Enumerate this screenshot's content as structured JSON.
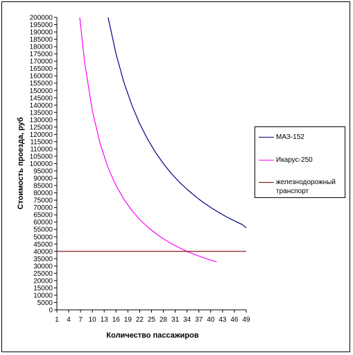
{
  "chart_data": {
    "type": "line",
    "title": "",
    "xlabel": "Количество пассажиров",
    "ylabel": "Стоимость проезда, руб",
    "xlim": [
      1,
      49
    ],
    "ylim": [
      0,
      200000
    ],
    "x_ticks": [
      "1",
      "4",
      "7",
      "10",
      "13",
      "16",
      "19",
      "22",
      "25",
      "28",
      "31",
      "34",
      "37",
      "40",
      "43",
      "46",
      "49"
    ],
    "y_ticks": [
      "0",
      "5000",
      "10000",
      "15000",
      "20000",
      "25000",
      "30000",
      "35000",
      "40000",
      "45000",
      "50000",
      "55000",
      "60000",
      "65000",
      "70000",
      "75000",
      "80000",
      "85000",
      "90000",
      "95000",
      "100000",
      "105000",
      "110000",
      "115000",
      "120000",
      "125000",
      "130000",
      "135000",
      "140000",
      "145000",
      "150000",
      "155000",
      "160000",
      "165000",
      "170000",
      "175000",
      "180000",
      "185000",
      "190000",
      "195000",
      "200000"
    ],
    "grid": false,
    "legend_position": "right",
    "series": [
      {
        "name": "МАЗ-152",
        "color": "#000080",
        "x": [
          14,
          16,
          18,
          20,
          22,
          24,
          26,
          28,
          30,
          32,
          34,
          36,
          38,
          40,
          42,
          44,
          46,
          48,
          50
        ],
        "y": [
          200000,
          175000,
          155500,
          140000,
          127300,
          116700,
          107700,
          100000,
          93300,
          87500,
          82400,
          77800,
          73700,
          70000,
          66700,
          63600,
          60900,
          58300,
          56000
        ]
      },
      {
        "name": "Икарус-250",
        "color": "#ff00ff",
        "x": [
          6.8,
          8,
          10,
          12,
          14,
          16,
          18,
          20,
          22,
          24,
          26,
          28,
          30,
          32,
          34,
          36,
          38,
          40,
          41.5
        ],
        "y": [
          200000,
          170000,
          136000,
          113300,
          97100,
          85000,
          75600,
          68000,
          61800,
          56700,
          52300,
          48600,
          45300,
          42500,
          40000,
          37800,
          35800,
          34000,
          32800
        ]
      },
      {
        "name": "железнодорожный транспорт",
        "color": "#800000",
        "x": [
          1,
          49
        ],
        "y": [
          40000,
          40000
        ]
      }
    ]
  }
}
